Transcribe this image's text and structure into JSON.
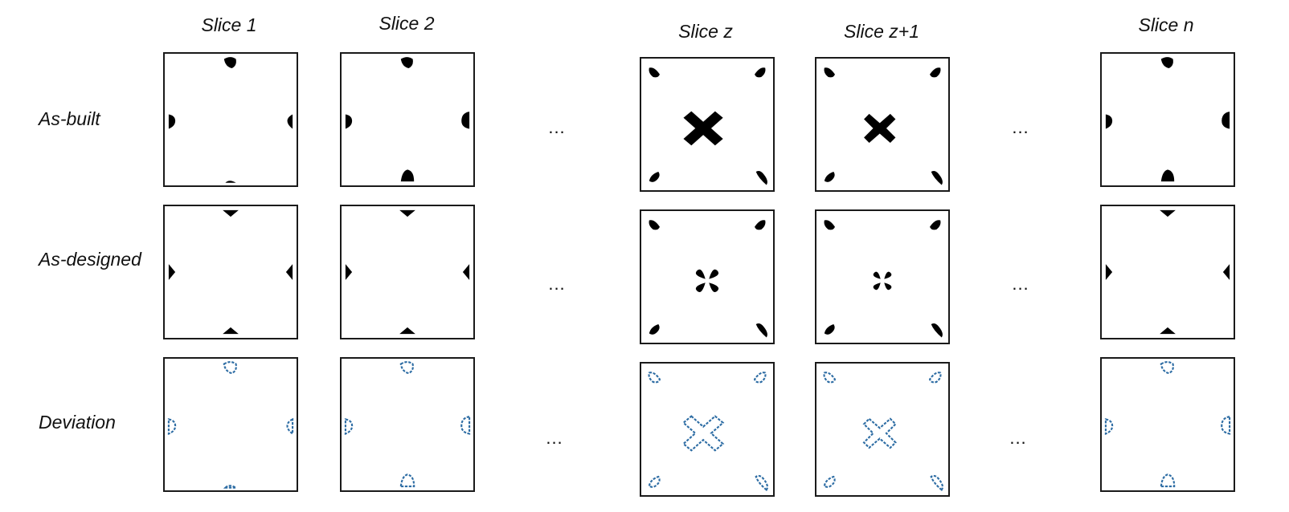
{
  "columns": [
    {
      "label": "Slice 1",
      "kind": "edge"
    },
    {
      "label": "Slice 2",
      "kind": "edge"
    },
    {
      "label": "Slice z",
      "kind": "corner-cross"
    },
    {
      "label": "Slice z+1",
      "kind": "corner-cross"
    },
    {
      "label": "Slice n",
      "kind": "edge"
    }
  ],
  "rows": [
    {
      "label": "As-built",
      "style": "solid-black"
    },
    {
      "label": "As-designed",
      "style": "solid-black"
    },
    {
      "label": "Deviation",
      "style": "blue-outline"
    }
  ],
  "ellipsis": "...",
  "colors": {
    "solid": "#000000",
    "deviation": "#2e6da4",
    "frame": "#1a1a1a"
  }
}
